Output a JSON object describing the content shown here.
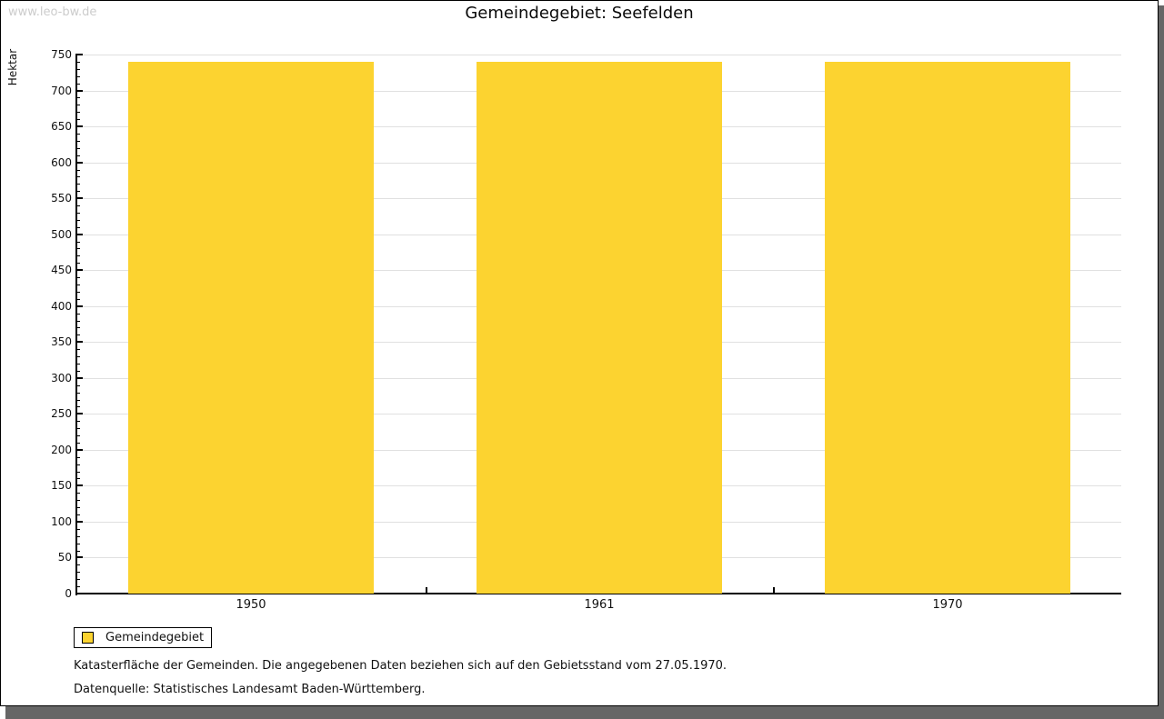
{
  "watermark": "www.leo-bw.de",
  "header": {
    "title": "Gemeindegebiet: Seefelden"
  },
  "chart_data": {
    "type": "bar",
    "title": "Gemeindegebiet: Seefelden",
    "categories": [
      "1950",
      "1961",
      "1970"
    ],
    "series": [
      {
        "name": "Gemeindegebiet",
        "values": [
          740,
          740,
          740
        ]
      }
    ],
    "xlabel": "",
    "ylabel": "Hektar",
    "ylim": [
      0,
      750
    ],
    "y_major_step": 50,
    "y_minor_step": 10,
    "grid": true,
    "legend_position": "bottom-left",
    "bar_color": "#FCD330"
  },
  "legend": {
    "items": [
      {
        "label": "Gemeindegebiet",
        "color": "#FCD330"
      }
    ]
  },
  "footnotes": [
    "Katasterfläche der Gemeinden. Die angegebenen Daten beziehen sich auf den Gebietsstand vom 27.05.1970.",
    "Datenquelle: Statistisches Landesamt Baden-Württemberg."
  ],
  "colors": {
    "bar": "#FCD330",
    "gridline": "#e0e0e0",
    "axis": "#000000",
    "watermark": "#cccccc",
    "frame_shadow": "#666666"
  }
}
